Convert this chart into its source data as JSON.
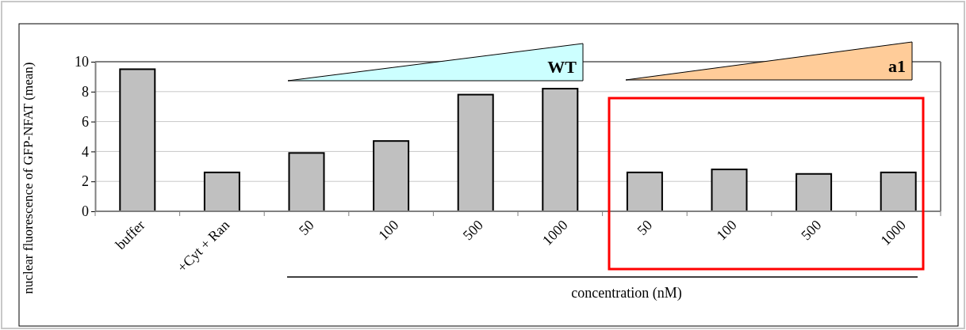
{
  "chart_data": {
    "type": "bar",
    "categories": [
      "buffer",
      "+Cyt + Ran",
      "50",
      "100",
      "500",
      "1000",
      "50",
      "100",
      "500",
      "1000"
    ],
    "values": [
      9.5,
      2.6,
      3.9,
      4.7,
      7.8,
      8.2,
      2.6,
      2.8,
      2.5,
      2.6
    ],
    "color": "#c0c0c0",
    "ylim": [
      0,
      10
    ],
    "yticks": [
      0,
      2,
      4,
      6,
      8,
      10
    ],
    "grid": "y",
    "xlabel": "concentration (nM)",
    "ylabel": "nuclear fluorescence of GFP-NFAT (mean)",
    "annotations": [
      "WT",
      "a1"
    ]
  }
}
